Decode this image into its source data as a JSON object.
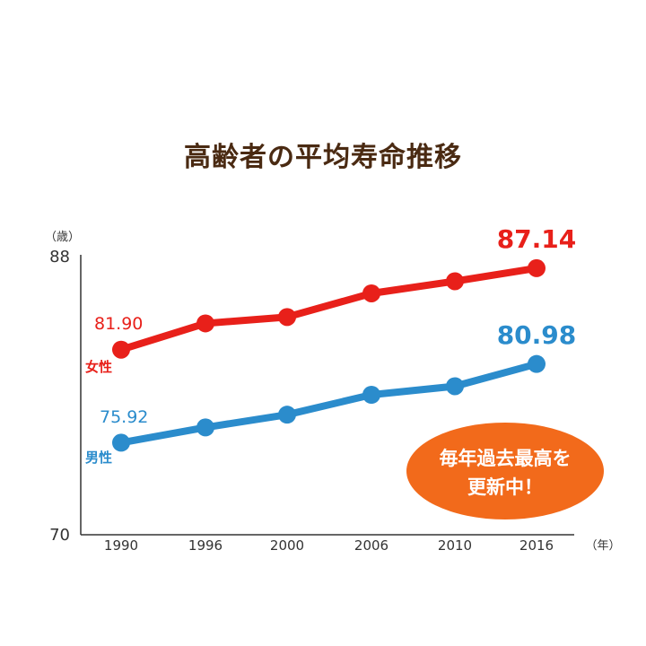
{
  "chart_data": {
    "type": "line",
    "title": "高齢者の平均寿命推移",
    "ylabel_unit": "（歳）",
    "xlabel_unit": "（年）",
    "ylim": [
      70,
      88
    ],
    "yticks": [
      "88",
      "70"
    ],
    "categories": [
      "1990",
      "1996",
      "2000",
      "2006",
      "2010",
      "2016"
    ],
    "grid": false,
    "series": [
      {
        "name": "女性",
        "color": "#e8201a",
        "values": [
          81.9,
          83.59,
          84.0,
          85.52,
          86.3,
          87.14
        ],
        "start_label": "81.90",
        "end_label": "87.14"
      },
      {
        "name": "男性",
        "color": "#2b8ccc",
        "values": [
          75.92,
          76.9,
          77.72,
          79.0,
          79.55,
          80.98
        ],
        "start_label": "75.92",
        "end_label": "80.98"
      }
    ],
    "annotation": {
      "lines": [
        "毎年過去最高を",
        "更新中！"
      ],
      "color": "#f26a1b"
    }
  }
}
